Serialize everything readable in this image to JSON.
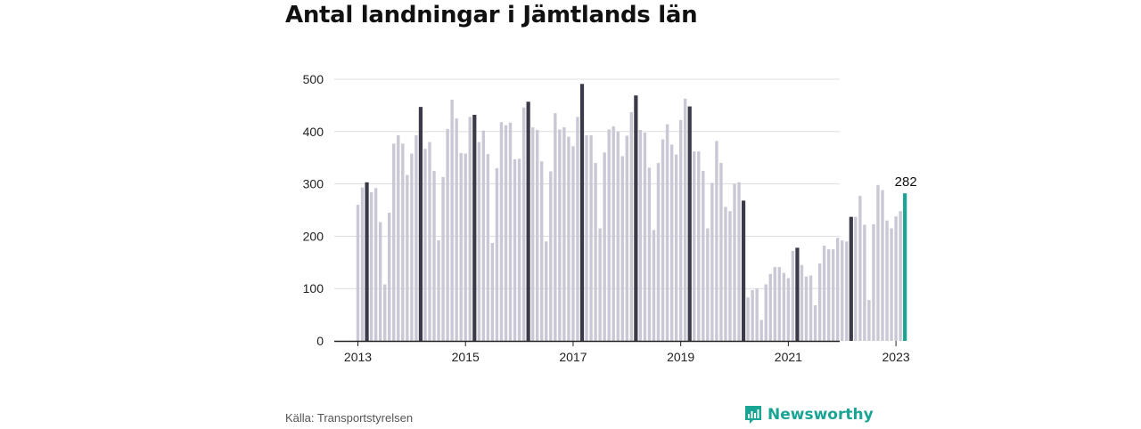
{
  "title": "Antal landningar i Jämtlands län",
  "source": "Källa: Transportstyrelsen",
  "brand": {
    "name": "Newsworthy",
    "logo_icon": "newsworthy-bar-chart-icon",
    "color": "#1aa494"
  },
  "colors": {
    "bar_default": "#c9c8d4",
    "bar_highlight": "#3a3a48",
    "bar_latest": "#1aa494",
    "grid": "#dddddd",
    "axis": "#222222"
  },
  "chart_data": {
    "type": "bar",
    "title": "Antal landningar i Jämtlands län",
    "xlabel": "",
    "ylabel": "",
    "ylim": [
      0,
      500
    ],
    "yticks": [
      0,
      100,
      200,
      300,
      400,
      500
    ],
    "xticks": [
      "2013",
      "2015",
      "2017",
      "2019",
      "2021",
      "2023"
    ],
    "grid": true,
    "start": "2013-01",
    "end": "2023-03",
    "values": [
      260,
      293,
      303,
      284,
      292,
      227,
      108,
      245,
      377,
      393,
      377,
      317,
      358,
      393,
      447,
      367,
      380,
      325,
      192,
      313,
      405,
      461,
      425,
      359,
      358,
      428,
      432,
      380,
      402,
      357,
      187,
      330,
      418,
      412,
      417,
      347,
      348,
      446,
      457,
      408,
      403,
      343,
      190,
      324,
      435,
      404,
      408,
      390,
      372,
      428,
      491,
      393,
      393,
      340,
      215,
      360,
      404,
      410,
      400,
      353,
      392,
      437,
      469,
      403,
      398,
      331,
      212,
      340,
      385,
      414,
      375,
      356,
      422,
      463,
      448,
      362,
      362,
      325,
      215,
      302,
      382,
      340,
      256,
      248,
      300,
      303,
      268,
      83,
      97,
      100,
      40,
      108,
      128,
      141,
      141,
      130,
      120,
      172,
      178,
      145,
      123,
      125,
      68,
      148,
      182,
      175,
      175,
      197,
      192,
      190,
      237,
      237,
      277,
      222,
      78,
      223,
      298,
      288,
      230,
      215,
      238,
      248,
      282
    ],
    "highlight_months": [
      "2013-03",
      "2014-03",
      "2015-03",
      "2016-03",
      "2017-03",
      "2018-03",
      "2019-03",
      "2020-03",
      "2021-03",
      "2022-03"
    ],
    "annotation": {
      "date": "2023-03",
      "value": 282,
      "label": "282"
    }
  }
}
